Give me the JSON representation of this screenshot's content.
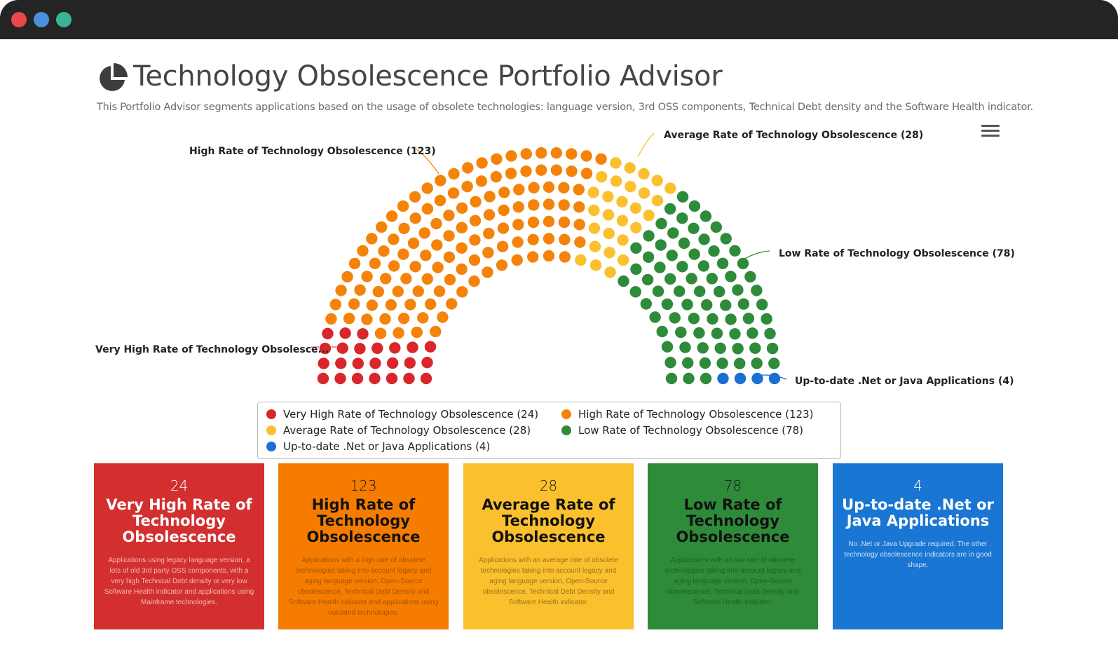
{
  "page": {
    "title": "Technology Obsolescence Portfolio Advisor",
    "subtitle": "This Portfolio Advisor segments applications based on the usage of obsolete technologies: language version, 3rd OSS components, Technical Debt density and the Software Health indicator."
  },
  "icons": {
    "logo": "pie-chart-icon",
    "menu": "hamburger-menu-icon"
  },
  "chart_data": {
    "type": "item-chart",
    "layout": "parliament-semicircle",
    "total": 257,
    "series": [
      {
        "name": "Very High Rate of Technology Obsolescence",
        "value": 24,
        "color": "#d9262b",
        "callout": "Very High Rate of Technology Obsolesce..."
      },
      {
        "name": "High Rate of Technology Obsolescence",
        "value": 123,
        "color": "#f58309",
        "callout": "High Rate of Technology Obsolescence (123)"
      },
      {
        "name": "Average Rate of Technology Obsolescence",
        "value": 28,
        "color": "#fbc02d",
        "callout": "Average Rate of Technology Obsolescence (28)"
      },
      {
        "name": "Low Rate of Technology Obsolescence",
        "value": 78,
        "color": "#2e8b3a",
        "callout": "Low Rate of Technology Obsolescence (78)"
      },
      {
        "name": "Up-to-date .Net or Java Applications",
        "value": 4,
        "color": "#1a6fd1",
        "callout": "Up-to-date .Net or Java Applications (4)"
      }
    ],
    "legend": [
      "Very High Rate of Technology Obsolescence (24)",
      "High Rate of Technology Obsolescence (123)",
      "Average Rate of Technology Obsolescence (28)",
      "Low Rate of Technology Obsolescence (78)",
      "Up-to-date .Net or Java Applications (4)"
    ],
    "legend_placement": "bottom"
  },
  "cards": [
    {
      "count": "24",
      "title": "Very High Rate of Technology Obsolescence",
      "description": "Applications using legacy language version, a lots of old 3rd party OSS components, with a very high Technical Debt density or very low Software Health indicator and applications using Mainframe technologies.",
      "bg": "#d32f2f",
      "desc_color": "#f2b8b8",
      "title_color": "#ffffff"
    },
    {
      "count": "123",
      "title": "High Rate of Technology Obsolescence",
      "description": "Applications with a high rate of obsolete technologies taking into account legacy and aging language version, Open-Source obsolescence, Technical Debt Density and Software Health indicator and applications using outdated technologies.",
      "bg": "#f57c00",
      "desc_color": "#a85400",
      "title_color": "#111111"
    },
    {
      "count": "28",
      "title": "Average Rate of Technology Obsolescence",
      "description": "Applications with an average rate of obsolete technologies taking into account legacy and aging language version, Open-Source obsolescence, Technical Debt Density and Software Health indicator.",
      "bg": "#fbc02d",
      "desc_color": "#9a7514",
      "title_color": "#111111"
    },
    {
      "count": "78",
      "title": "Low Rate of Technology Obsolescence",
      "description": "Applications with an low rate of obsolete technologies taking into account legacy and aging language version, Open-Source obsolescence, Technical Debt Density and Software Health indicator.",
      "bg": "#2e8b3a",
      "desc_color": "#1f5f27",
      "title_color": "#111111"
    },
    {
      "count": "4",
      "title": "Up-to-date .Net or Java Applications",
      "description": "No .Net or Java Upgrade required. The other technology obsolescence indicators are in good shape.",
      "bg": "#1976d2",
      "desc_color": "#cfe0f5",
      "title_color": "#ffffff"
    }
  ]
}
